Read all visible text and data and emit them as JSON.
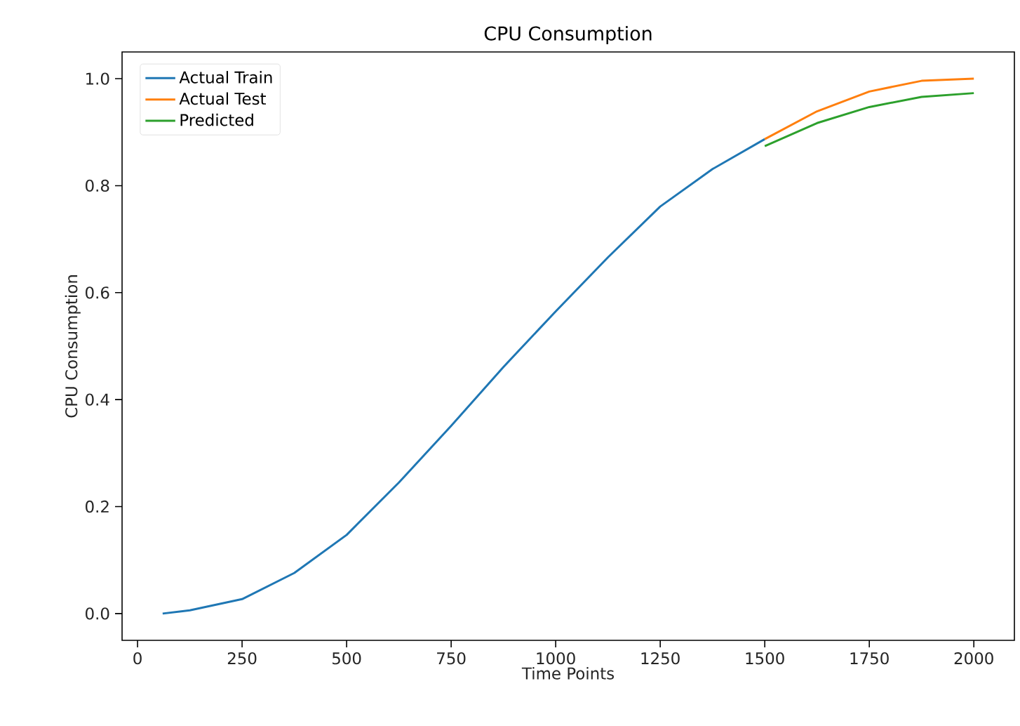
{
  "chart_data": {
    "type": "line",
    "title": "CPU Consumption",
    "xlabel": "Time Points",
    "ylabel": "CPU Consumption",
    "xlim": [
      -37,
      2097
    ],
    "ylim": [
      -0.05,
      1.05
    ],
    "xticks": [
      0,
      250,
      500,
      750,
      1000,
      1250,
      1500,
      1750,
      2000
    ],
    "yticks": [
      {
        "value": 0,
        "label": "0.0"
      },
      {
        "value": 0.2,
        "label": "0.2"
      },
      {
        "value": 0.4,
        "label": "0.4"
      },
      {
        "value": 0.6,
        "label": "0.6"
      },
      {
        "value": 0.8,
        "label": "0.8"
      },
      {
        "value": 1.0,
        "label": "1.0"
      }
    ],
    "grid": false,
    "legend": "top left",
    "marker": "none",
    "line_style": "solid",
    "series": [
      {
        "name": "Actual Train",
        "color": "#1f77b4",
        "x": [
          60,
          125,
          250,
          375,
          500,
          625,
          750,
          875,
          1000,
          1125,
          1250,
          1375,
          1500
        ],
        "values": [
          0.0,
          0.006,
          0.027,
          0.076,
          0.147,
          0.245,
          0.351,
          0.461,
          0.565,
          0.666,
          0.761,
          0.831,
          0.887
        ]
      },
      {
        "name": "Actual Test",
        "color": "#ff7f0e",
        "x": [
          1500,
          1625,
          1750,
          1875,
          2000
        ],
        "values": [
          0.887,
          0.939,
          0.976,
          0.996,
          1.0
        ]
      },
      {
        "name": "Predicted",
        "color": "#2ca02c",
        "x": [
          1500,
          1625,
          1750,
          1875,
          2000
        ],
        "values": [
          0.874,
          0.917,
          0.947,
          0.966,
          0.973
        ]
      }
    ]
  }
}
